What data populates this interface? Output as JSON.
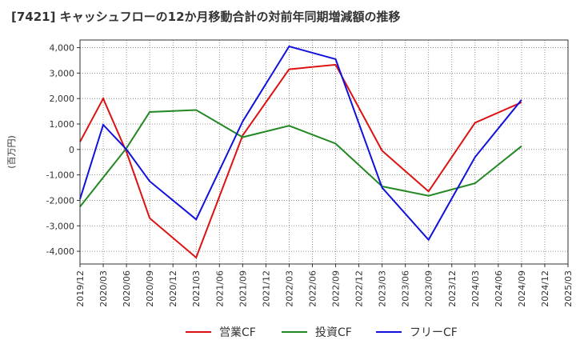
{
  "chart_data": {
    "type": "line",
    "title": "[7421]  キャッシュフローの12か月移動合計の対前年同期増減額の推移",
    "ylabel": "(百万円)",
    "xlabel": "",
    "ylim": [
      -4500,
      4300
    ],
    "yticks": [
      -4000,
      -3000,
      -2000,
      -1000,
      0,
      1000,
      2000,
      3000,
      4000
    ],
    "ytick_labels": [
      "-4,000",
      "-3,000",
      "-2,000",
      "-1,000",
      "0",
      "1,000",
      "2,000",
      "3,000",
      "4,000"
    ],
    "x_tick_labels": [
      "2019/12",
      "2020/03",
      "2020/06",
      "2020/09",
      "2020/12",
      "2021/03",
      "2021/06",
      "2021/09",
      "2021/12",
      "2022/03",
      "2022/06",
      "2022/09",
      "2022/12",
      "2023/03",
      "2023/06",
      "2023/09",
      "2023/12",
      "2024/03",
      "2024/06",
      "2024/09",
      "2024/12",
      "2025/03"
    ],
    "grid": true,
    "legend_position": "bottom-center",
    "series": [
      {
        "name": "営業CF",
        "color": "#dd1111",
        "x": [
          "2019/12",
          "2020/03",
          "2020/06",
          "2020/09",
          "2021/03",
          "2021/09",
          "2022/03",
          "2022/09",
          "2023/03",
          "2023/09",
          "2024/03",
          "2024/09"
        ],
        "values": [
          300,
          2000,
          -100,
          -2700,
          -4250,
          550,
          3150,
          3330,
          -50,
          -1650,
          1050,
          1850
        ]
      },
      {
        "name": "投資CF",
        "color": "#228822",
        "x": [
          "2019/12",
          "2020/06",
          "2020/09",
          "2021/03",
          "2021/09",
          "2022/03",
          "2022/09",
          "2023/03",
          "2023/09",
          "2024/03",
          "2024/09"
        ],
        "values": [
          -2250,
          50,
          1470,
          1550,
          480,
          930,
          230,
          -1450,
          -1820,
          -1330,
          130
        ]
      },
      {
        "name": "フリーCF",
        "color": "#1111dd",
        "x": [
          "2019/12",
          "2020/03",
          "2020/06",
          "2020/09",
          "2021/03",
          "2021/09",
          "2022/03",
          "2022/09",
          "2023/03",
          "2023/09",
          "2024/03",
          "2024/09"
        ],
        "values": [
          -1950,
          970,
          0,
          -1250,
          -2750,
          1100,
          4050,
          3550,
          -1500,
          -3550,
          -300,
          1950
        ]
      }
    ]
  }
}
